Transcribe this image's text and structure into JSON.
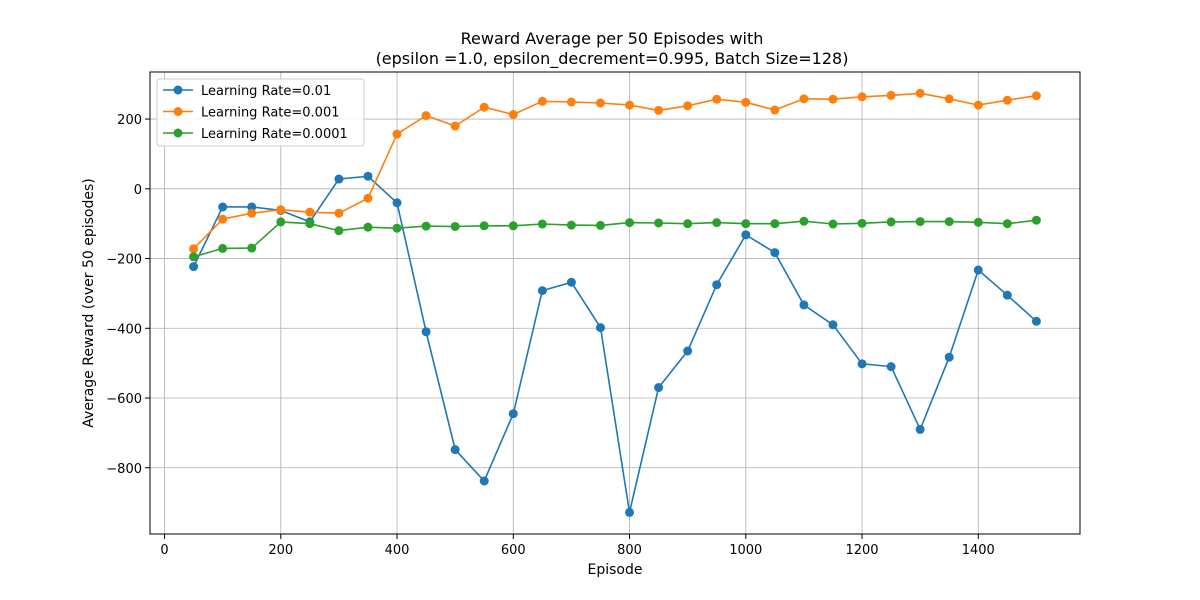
{
  "chart_data": {
    "type": "line",
    "title_line1": "Reward Average per 50 Episodes with",
    "title_line2": "(epsilon =1.0, epsilon_decrement=0.995, Batch Size=128)",
    "xlabel": "Episode",
    "ylabel": "Average Reward (over 50 episodes)",
    "xlim": [
      -25,
      1575
    ],
    "ylim": [
      -990,
      335
    ],
    "xticks": [
      0,
      200,
      400,
      600,
      800,
      1000,
      1200,
      1400
    ],
    "yticks": [
      -800,
      -600,
      -400,
      -200,
      0,
      200
    ],
    "grid": true,
    "legend_position": "top-left",
    "x": [
      50,
      100,
      150,
      200,
      250,
      300,
      350,
      400,
      450,
      500,
      550,
      600,
      650,
      700,
      750,
      800,
      850,
      900,
      950,
      1000,
      1050,
      1100,
      1150,
      1200,
      1250,
      1300,
      1350,
      1400,
      1450,
      1500
    ],
    "series": [
      {
        "name": "Learning Rate=0.01",
        "color": "#1f77b4",
        "values": [
          -223,
          -52,
          -52,
          -62,
          -95,
          28,
          36,
          -40,
          -410,
          -748,
          -838,
          -645,
          -292,
          -268,
          -398,
          -928,
          -570,
          -465,
          -275,
          -132,
          -183,
          -333,
          -390,
          -502,
          -510,
          -690,
          -483,
          -233,
          -305,
          -380
        ]
      },
      {
        "name": "Learning Rate=0.001",
        "color": "#ff7f0e",
        "values": [
          -172,
          -87,
          -70,
          -60,
          -67,
          -70,
          -27,
          157,
          210,
          180,
          234,
          213,
          251,
          249,
          246,
          240,
          225,
          238,
          257,
          248,
          226,
          258,
          257,
          264,
          268,
          274,
          258,
          240,
          254,
          267
        ]
      },
      {
        "name": "Learning Rate=0.0001",
        "color": "#2ca02c",
        "values": [
          -195,
          -171,
          -170,
          -95,
          -100,
          -120,
          -110,
          -113,
          -107,
          -108,
          -106,
          -106,
          -101,
          -104,
          -105,
          -97,
          -98,
          -100,
          -97,
          -100,
          -100,
          -93,
          -101,
          -99,
          -95,
          -94,
          -94,
          -96,
          -100,
          -90
        ]
      }
    ]
  }
}
